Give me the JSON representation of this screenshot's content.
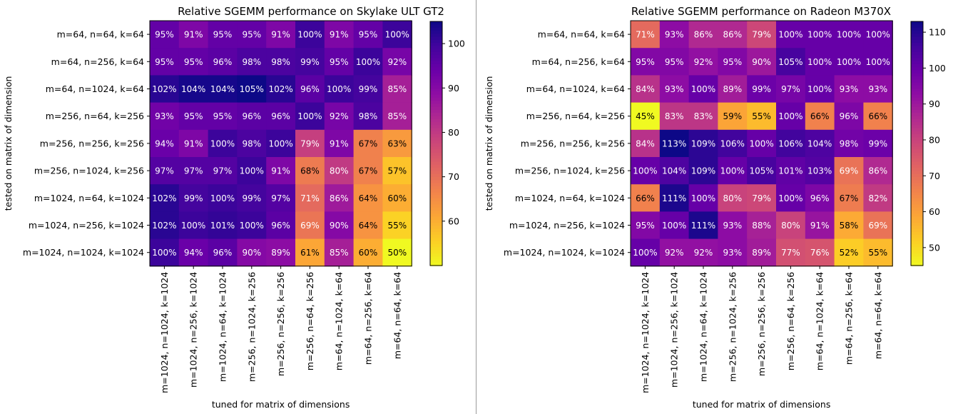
{
  "chart_data": [
    {
      "type": "heatmap",
      "title": "Relative SGEMM performance on Skylake ULT GT2",
      "xlabel": "tuned for matrix of dimensions",
      "ylabel": "tested on matrix of dimension",
      "x_categories": [
        "m=1024, n=1024, k=1024",
        "m=1024, n=256, k=1024",
        "m=1024, n=64, k=1024",
        "m=256, n=1024, k=256",
        "m=256, n=256, k=256",
        "m=256, n=64, k=256",
        "m=64, n=1024, k=64",
        "m=64, n=256, k=64",
        "m=64, n=64, k=64"
      ],
      "y_categories": [
        "m=64, n=64, k=64",
        "m=64, n=256, k=64",
        "m=64, n=1024, k=64",
        "m=256, n=64, k=256",
        "m=256, n=256, k=256",
        "m=256, n=1024, k=256",
        "m=1024, n=64, k=1024",
        "m=1024, n=256, k=1024",
        "m=1024, n=1024, k=1024"
      ],
      "values": [
        [
          95,
          91,
          95,
          95,
          91,
          100,
          91,
          95,
          100
        ],
        [
          95,
          95,
          96,
          98,
          98,
          99,
          95,
          100,
          92
        ],
        [
          102,
          104,
          104,
          105,
          102,
          96,
          100,
          99,
          85
        ],
        [
          93,
          95,
          95,
          96,
          96,
          100,
          92,
          98,
          85
        ],
        [
          94,
          91,
          100,
          98,
          100,
          79,
          91,
          67,
          63
        ],
        [
          97,
          97,
          97,
          100,
          91,
          68,
          80,
          67,
          57
        ],
        [
          102,
          99,
          100,
          99,
          97,
          71,
          86,
          64,
          60
        ],
        [
          102,
          100,
          101,
          100,
          96,
          69,
          90,
          64,
          55
        ],
        [
          100,
          94,
          96,
          90,
          89,
          61,
          85,
          60,
          50
        ]
      ],
      "value_format": "percent",
      "colormap": "plasma_r",
      "color_range": [
        50,
        105
      ],
      "colorbar_ticks": [
        60,
        70,
        80,
        90,
        100
      ]
    },
    {
      "type": "heatmap",
      "title": "Relative SGEMM performance on Radeon M370X",
      "xlabel": "tuned for matrix of dimensions",
      "ylabel": "tested on matrix of dimension",
      "x_categories": [
        "m=1024, n=1024, k=1024",
        "m=1024, n=256, k=1024",
        "m=1024, n=64, k=1024",
        "m=256, n=1024, k=256",
        "m=256, n=256, k=256",
        "m=256, n=64, k=256",
        "m=64, n=1024, k=64",
        "m=64, n=256, k=64",
        "m=64, n=64, k=64"
      ],
      "y_categories": [
        "m=64, n=64, k=64",
        "m=64, n=256, k=64",
        "m=64, n=1024, k=64",
        "m=256, n=64, k=256",
        "m=256, n=256, k=256",
        "m=256, n=1024, k=256",
        "m=1024, n=64, k=1024",
        "m=1024, n=256, k=1024",
        "m=1024, n=1024, k=1024"
      ],
      "values": [
        [
          71,
          93,
          86,
          86,
          79,
          100,
          100,
          100,
          100
        ],
        [
          95,
          95,
          92,
          95,
          90,
          105,
          100,
          100,
          100
        ],
        [
          84,
          93,
          100,
          89,
          99,
          97,
          100,
          93,
          93
        ],
        [
          45,
          83,
          83,
          59,
          55,
          100,
          66,
          96,
          66
        ],
        [
          84,
          113,
          109,
          106,
          100,
          106,
          104,
          98,
          99
        ],
        [
          100,
          104,
          109,
          100,
          105,
          101,
          103,
          69,
          86
        ],
        [
          66,
          111,
          100,
          80,
          79,
          100,
          96,
          67,
          82
        ],
        [
          95,
          100,
          111,
          93,
          88,
          80,
          91,
          58,
          69
        ],
        [
          100,
          92,
          92,
          93,
          89,
          77,
          76,
          52,
          55
        ]
      ],
      "value_format": "percent",
      "colormap": "plasma_r",
      "color_range": [
        45,
        113
      ],
      "colorbar_ticks": [
        50,
        60,
        70,
        80,
        90,
        100,
        110
      ]
    }
  ]
}
